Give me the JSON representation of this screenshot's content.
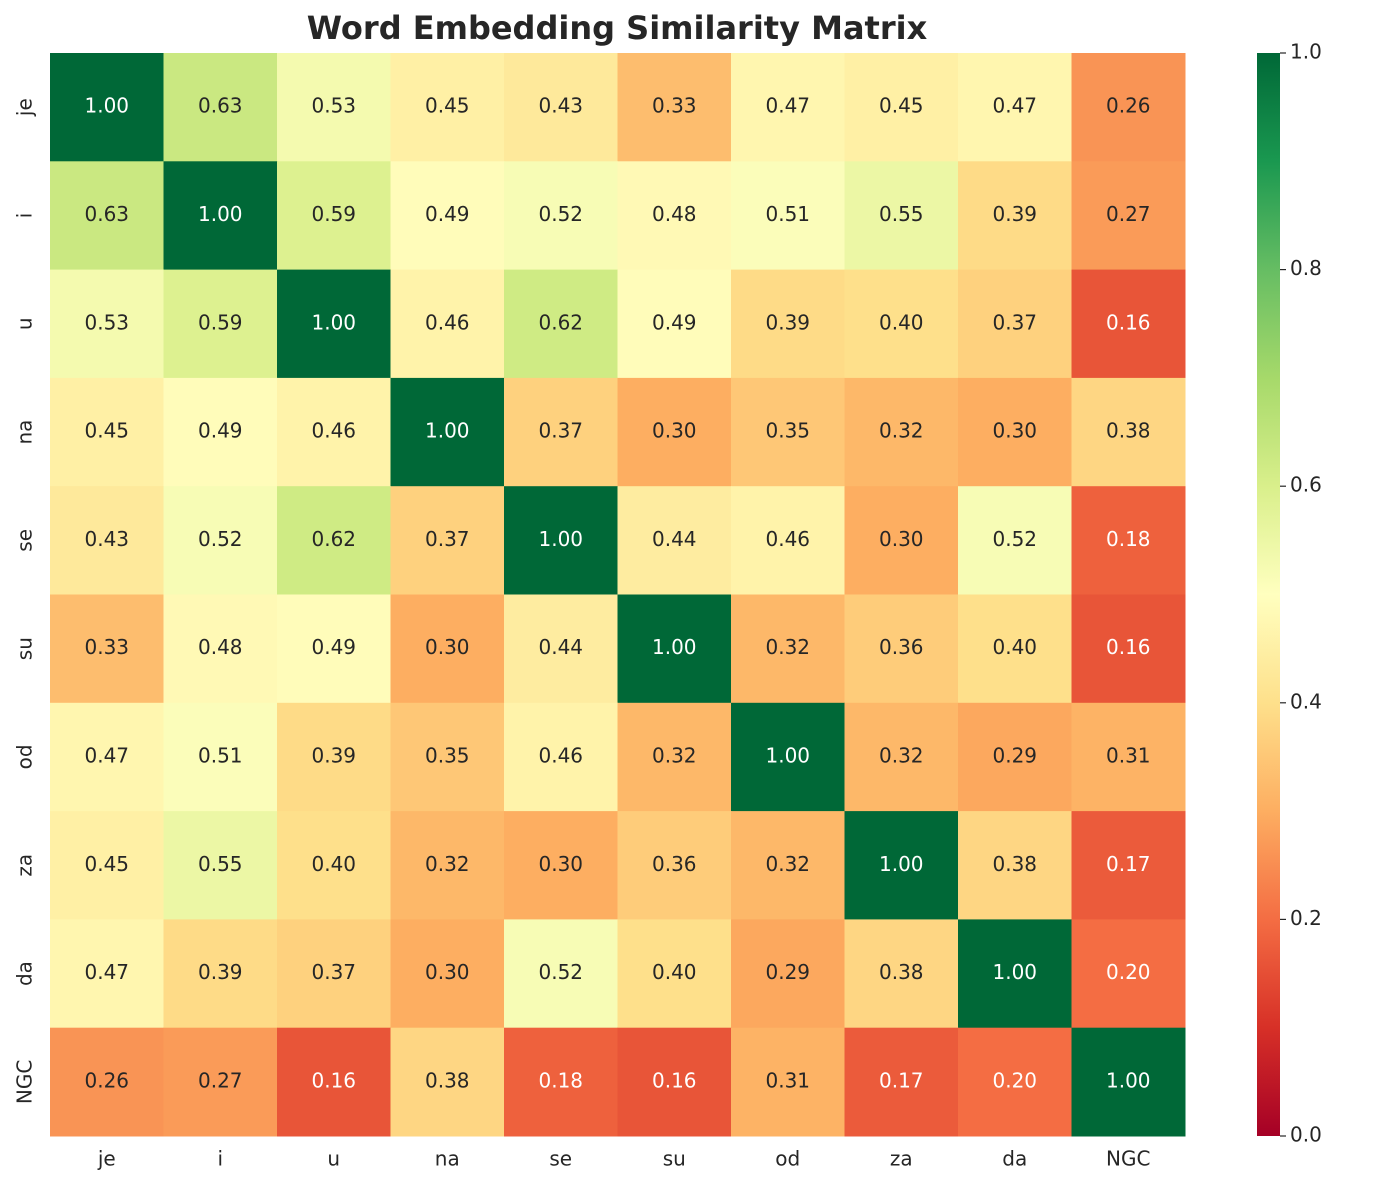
{
  "chart_data": {
    "type": "heatmap",
    "title": "Word Embedding Similarity Matrix",
    "x_categories": [
      "je",
      "i",
      "u",
      "na",
      "se",
      "su",
      "od",
      "za",
      "da",
      "NGC"
    ],
    "y_categories": [
      "je",
      "i",
      "u",
      "na",
      "se",
      "su",
      "od",
      "za",
      "da",
      "NGC"
    ],
    "values": [
      [
        1.0,
        0.63,
        0.53,
        0.45,
        0.43,
        0.33,
        0.47,
        0.45,
        0.47,
        0.26
      ],
      [
        0.63,
        1.0,
        0.59,
        0.49,
        0.52,
        0.48,
        0.51,
        0.55,
        0.39,
        0.27
      ],
      [
        0.53,
        0.59,
        1.0,
        0.46,
        0.62,
        0.49,
        0.39,
        0.4,
        0.37,
        0.16
      ],
      [
        0.45,
        0.49,
        0.46,
        1.0,
        0.37,
        0.3,
        0.35,
        0.32,
        0.3,
        0.38
      ],
      [
        0.43,
        0.52,
        0.62,
        0.37,
        1.0,
        0.44,
        0.46,
        0.3,
        0.52,
        0.18
      ],
      [
        0.33,
        0.48,
        0.49,
        0.3,
        0.44,
        1.0,
        0.32,
        0.36,
        0.4,
        0.16
      ],
      [
        0.47,
        0.51,
        0.39,
        0.35,
        0.46,
        0.32,
        1.0,
        0.32,
        0.29,
        0.31
      ],
      [
        0.45,
        0.55,
        0.4,
        0.32,
        0.3,
        0.36,
        0.32,
        1.0,
        0.38,
        0.17
      ],
      [
        0.47,
        0.39,
        0.37,
        0.3,
        0.52,
        0.4,
        0.29,
        0.38,
        1.0,
        0.2
      ],
      [
        0.26,
        0.27,
        0.16,
        0.38,
        0.18,
        0.16,
        0.31,
        0.17,
        0.2,
        1.0
      ]
    ],
    "value_labels": [
      [
        "1.00",
        "0.63",
        "0.53",
        "0.45",
        "0.43",
        "0.33",
        "0.47",
        "0.45",
        "0.47",
        "0.26"
      ],
      [
        "0.63",
        "1.00",
        "0.59",
        "0.49",
        "0.52",
        "0.48",
        "0.51",
        "0.55",
        "0.39",
        "0.27"
      ],
      [
        "0.53",
        "0.59",
        "1.00",
        "0.46",
        "0.62",
        "0.49",
        "0.39",
        "0.40",
        "0.37",
        "0.16"
      ],
      [
        "0.45",
        "0.49",
        "0.46",
        "1.00",
        "0.37",
        "0.30",
        "0.35",
        "0.32",
        "0.30",
        "0.38"
      ],
      [
        "0.43",
        "0.52",
        "0.62",
        "0.37",
        "1.00",
        "0.44",
        "0.46",
        "0.30",
        "0.52",
        "0.18"
      ],
      [
        "0.33",
        "0.48",
        "0.49",
        "0.30",
        "0.44",
        "1.00",
        "0.32",
        "0.36",
        "0.40",
        "0.16"
      ],
      [
        "0.47",
        "0.51",
        "0.39",
        "0.35",
        "0.46",
        "0.32",
        "1.00",
        "0.32",
        "0.29",
        "0.31"
      ],
      [
        "0.45",
        "0.55",
        "0.40",
        "0.32",
        "0.30",
        "0.36",
        "0.32",
        "1.00",
        "0.38",
        "0.17"
      ],
      [
        "0.47",
        "0.39",
        "0.37",
        "0.30",
        "0.52",
        "0.40",
        "0.29",
        "0.38",
        "1.00",
        "0.20"
      ],
      [
        "0.26",
        "0.27",
        "0.16",
        "0.38",
        "0.18",
        "0.16",
        "0.31",
        "0.17",
        "0.20",
        "1.00"
      ]
    ],
    "colormap": "RdYlGn",
    "clim": [
      0,
      1
    ],
    "cticks": [
      {
        "value": 0,
        "label": "0.0"
      },
      0.2,
      0.4,
      0.6,
      0.8,
      {
        "value": 1,
        "label": "1.0"
      }
    ]
  }
}
